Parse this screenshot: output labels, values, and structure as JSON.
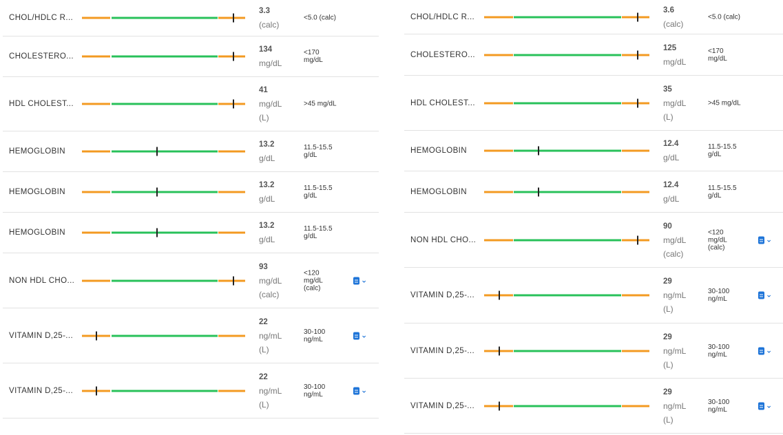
{
  "left": [
    {
      "name": "CHOL/HDLC R...",
      "marker": 0.93,
      "value": "3.3",
      "unit": "(calc)",
      "flag": "",
      "range": "<5.0 (calc)",
      "actions": false
    },
    {
      "name": "CHOLESTERO...",
      "marker": 0.93,
      "value": "134",
      "unit": "mg/dL",
      "flag": "",
      "range": "<170\nmg/dL",
      "actions": false
    },
    {
      "name": "HDL CHOLEST...",
      "marker": 0.93,
      "value": "41",
      "unit": "mg/dL",
      "flag": "(L)",
      "range": ">45 mg/dL",
      "actions": false
    },
    {
      "name": "HEMOGLOBIN",
      "marker": 0.46,
      "value": "13.2",
      "unit": "g/dL",
      "flag": "",
      "range": "11.5-15.5\ng/dL",
      "actions": false
    },
    {
      "name": "HEMOGLOBIN",
      "marker": 0.46,
      "value": "13.2",
      "unit": "g/dL",
      "flag": "",
      "range": "11.5-15.5\ng/dL",
      "actions": false
    },
    {
      "name": "HEMOGLOBIN",
      "marker": 0.46,
      "value": "13.2",
      "unit": "g/dL",
      "flag": "",
      "range": "11.5-15.5\ng/dL",
      "actions": false
    },
    {
      "name": "NON HDL CHO...",
      "marker": 0.93,
      "value": "93",
      "unit": "mg/dL",
      "flag": "(calc)",
      "range": "<120\nmg/dL\n(calc)",
      "actions": true
    },
    {
      "name": "VITAMIN D,25-...",
      "marker": 0.09,
      "value": "22",
      "unit": "ng/mL",
      "flag": "(L)",
      "range": "30-100\nng/mL",
      "actions": true
    },
    {
      "name": "VITAMIN D,25-...",
      "marker": 0.09,
      "value": "22",
      "unit": "ng/mL",
      "flag": "(L)",
      "range": "30-100\nng/mL",
      "actions": true
    }
  ],
  "right": [
    {
      "name": "CHOL/HDLC R...",
      "marker": 0.93,
      "value": "3.6",
      "unit": "(calc)",
      "flag": "",
      "range": "<5.0 (calc)",
      "actions": false
    },
    {
      "name": "CHOLESTERO...",
      "marker": 0.93,
      "value": "125",
      "unit": "mg/dL",
      "flag": "",
      "range": "<170\nmg/dL",
      "actions": false
    },
    {
      "name": "HDL CHOLEST...",
      "marker": 0.93,
      "value": "35",
      "unit": "mg/dL",
      "flag": "(L)",
      "range": ">45 mg/dL",
      "actions": false
    },
    {
      "name": "HEMOGLOBIN",
      "marker": 0.33,
      "value": "12.4",
      "unit": "g/dL",
      "flag": "",
      "range": "11.5-15.5\ng/dL",
      "actions": false
    },
    {
      "name": "HEMOGLOBIN",
      "marker": 0.33,
      "value": "12.4",
      "unit": "g/dL",
      "flag": "",
      "range": "11.5-15.5\ng/dL",
      "actions": false
    },
    {
      "name": "NON HDL CHO...",
      "marker": 0.93,
      "value": "90",
      "unit": "mg/dL",
      "flag": "(calc)",
      "range": "<120\nmg/dL\n(calc)",
      "actions": true
    },
    {
      "name": "VITAMIN D,25-...",
      "marker": 0.09,
      "value": "29",
      "unit": "ng/mL",
      "flag": "(L)",
      "range": "30-100\nng/mL",
      "actions": true
    },
    {
      "name": "VITAMIN D,25-...",
      "marker": 0.09,
      "value": "29",
      "unit": "ng/mL",
      "flag": "(L)",
      "range": "30-100\nng/mL",
      "actions": true
    },
    {
      "name": "VITAMIN D,25-...",
      "marker": 0.09,
      "value": "29",
      "unit": "ng/mL",
      "flag": "(L)",
      "range": "30-100\nng/mL",
      "actions": true
    }
  ],
  "icons": {
    "doc": "document-icon",
    "chevron": "chevron-down-icon"
  },
  "colors": {
    "out_of_range": "#f39a21",
    "in_range": "#28c15a",
    "marker": "#222222",
    "action": "#1e74d8"
  }
}
